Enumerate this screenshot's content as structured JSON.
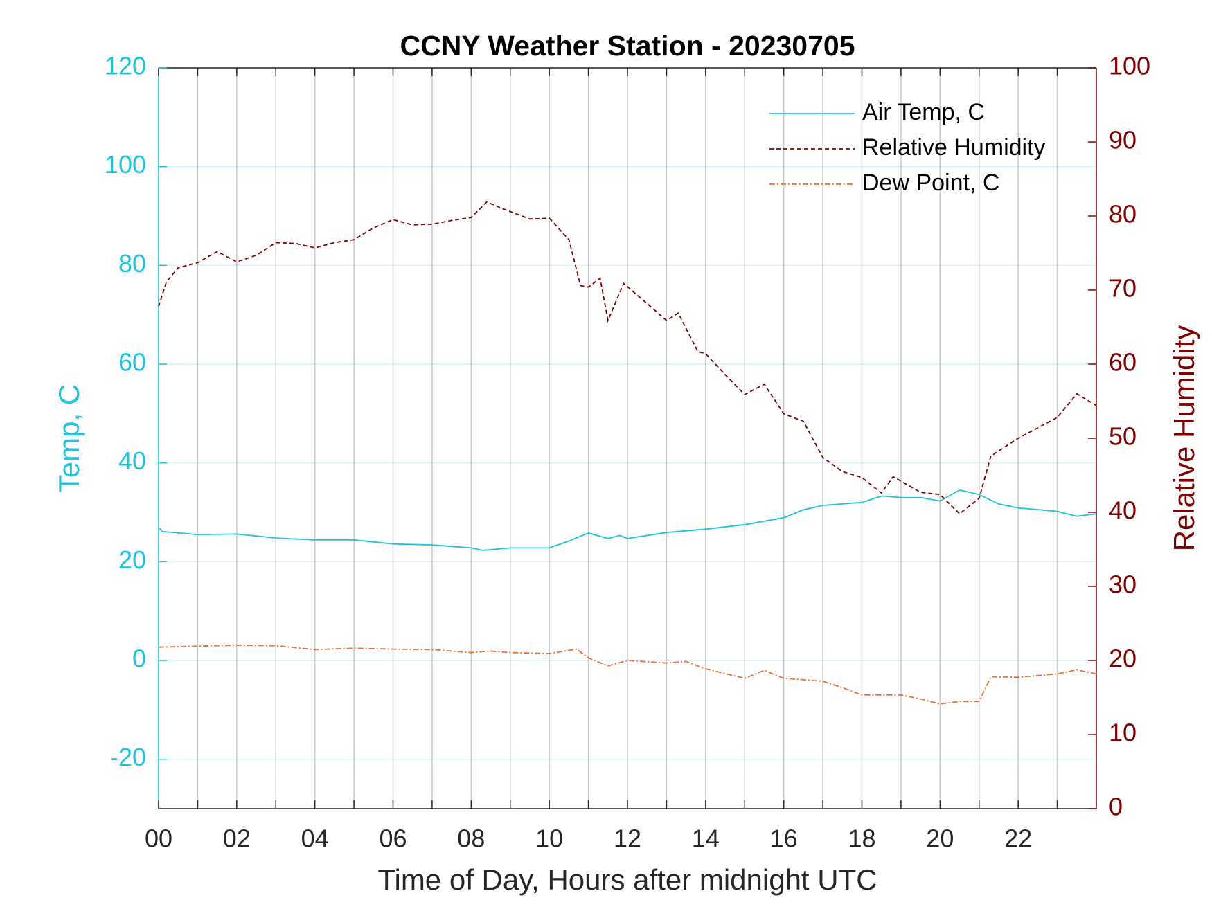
{
  "chart_data": {
    "type": "line",
    "title": "CCNY Weather Station - 20230705",
    "xlabel": "Time of Day, Hours after midnight UTC",
    "ylabel": "Temp, C",
    "y2label": "Relative Humidity",
    "xlim": [
      0,
      24
    ],
    "xticks": [
      {
        "value": 0,
        "label": "00"
      },
      {
        "value": 2,
        "label": "02"
      },
      {
        "value": 4,
        "label": "04"
      },
      {
        "value": 6,
        "label": "06"
      },
      {
        "value": 8,
        "label": "08"
      },
      {
        "value": 10,
        "label": "10"
      },
      {
        "value": 12,
        "label": "12"
      },
      {
        "value": 14,
        "label": "14"
      },
      {
        "value": 16,
        "label": "16"
      },
      {
        "value": 18,
        "label": "18"
      },
      {
        "value": 20,
        "label": "20"
      },
      {
        "value": 22,
        "label": "22"
      }
    ],
    "xminorticks": [
      1,
      3,
      5,
      7,
      9,
      11,
      13,
      15,
      17,
      19,
      21,
      23
    ],
    "ylim": [
      -30,
      120
    ],
    "yticks": [
      -20,
      0,
      20,
      40,
      60,
      80,
      100,
      120
    ],
    "y2lim": [
      0,
      100
    ],
    "y2ticks": [
      0,
      10,
      20,
      30,
      40,
      50,
      60,
      70,
      80,
      90,
      100
    ],
    "ycolor": "#1fc3dc",
    "y2color": "#7f0000",
    "grid": true,
    "legend": "top-right",
    "series": [
      {
        "name": "Air Temp, C",
        "color": "#1fc3dc",
        "dash": "solid",
        "x": [
          0,
          0.1,
          1,
          2,
          3,
          4,
          5,
          6,
          7,
          8,
          8.3,
          9,
          10,
          10.5,
          11,
          11.5,
          11.8,
          12,
          12.5,
          13,
          14,
          15,
          16,
          16.5,
          17,
          18,
          18.5,
          19,
          19.5,
          20,
          20.5,
          21,
          21.5,
          22,
          23,
          23.5,
          24
        ],
        "values": [
          26.9,
          26.1,
          25.5,
          25.6,
          24.8,
          24.4,
          24.4,
          23.6,
          23.4,
          22.8,
          22.3,
          22.8,
          22.8,
          24.2,
          25.8,
          24.7,
          25.3,
          24.7,
          25.3,
          25.9,
          26.6,
          27.5,
          28.9,
          30.5,
          31.4,
          32,
          33.3,
          33,
          33,
          32.3,
          34.5,
          33.6,
          31.7,
          30.9,
          30.2,
          29.2,
          29.7
        ]
      },
      {
        "name": "Relative Humidity",
        "color": "#7f0000",
        "dash": "dashed",
        "axis": "y2",
        "x": [
          0,
          0.2,
          0.5,
          1,
          1.5,
          2,
          2.5,
          3,
          3.5,
          4,
          4.5,
          5,
          5.5,
          6,
          6.5,
          7,
          7.5,
          8,
          8.4,
          8.8,
          9.5,
          10,
          10.5,
          10.8,
          11,
          11.3,
          11.5,
          11.9,
          12.5,
          13,
          13.3,
          13.8,
          14,
          14.5,
          15,
          15.5,
          16,
          16.5,
          17,
          17.5,
          18,
          18.5,
          18.8,
          19.5,
          20,
          20.5,
          21,
          21.3,
          22,
          23,
          23.5,
          24
        ],
        "values": [
          67.8,
          71.1,
          73,
          73.7,
          75.2,
          73.8,
          74.7,
          76.4,
          76.3,
          75.7,
          76.4,
          76.8,
          78.4,
          79.5,
          78.8,
          78.9,
          79.4,
          79.8,
          81.9,
          81,
          79.6,
          79.7,
          76.8,
          70.6,
          70.4,
          71.6,
          65.9,
          70.9,
          68.2,
          65.9,
          66.9,
          61.7,
          61.4,
          58.6,
          55.9,
          57.3,
          53.3,
          52.3,
          47.4,
          45.5,
          44.7,
          42.6,
          44.8,
          42.7,
          42.4,
          39.8,
          41.9,
          47.6,
          50,
          52.8,
          56,
          54.4
        ]
      },
      {
        "name": "Dew Point, C",
        "color": "#e8703a",
        "dash": "dashdot",
        "x": [
          0,
          2,
          3,
          4,
          5,
          6,
          7,
          8,
          8.5,
          9,
          10,
          10.7,
          11,
          11.5,
          12,
          13,
          13.5,
          14,
          15,
          15.5,
          16,
          17,
          17.5,
          18,
          19,
          19.5,
          20,
          20.5,
          21,
          21.3,
          22,
          23,
          23.5,
          24
        ],
        "values": [
          2.7,
          3.1,
          3,
          2.2,
          2.5,
          2.3,
          2.2,
          1.6,
          1.9,
          1.6,
          1.4,
          2.3,
          0.5,
          -1.1,
          0,
          -0.5,
          -0.2,
          -1.7,
          -3.6,
          -2,
          -3.6,
          -4.2,
          -5.5,
          -7,
          -7,
          -7.8,
          -8.8,
          -8.3,
          -8.3,
          -3.3,
          -3.4,
          -2.7,
          -1.9,
          -2.7
        ]
      }
    ]
  }
}
